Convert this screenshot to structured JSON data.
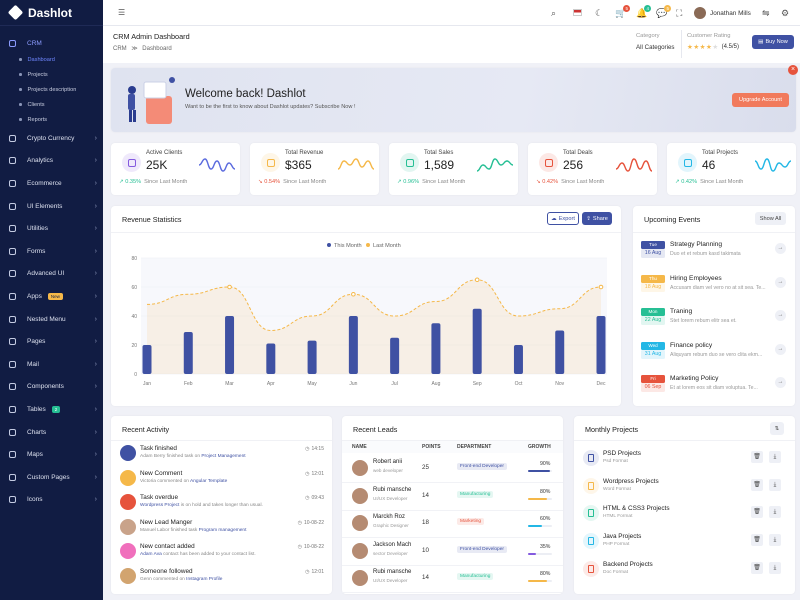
{
  "app": {
    "name": "Dashlot"
  },
  "sidebar": {
    "items": [
      {
        "label": "CRM",
        "active": true,
        "icon": "home-icon"
      },
      {
        "label": "Crypto Currency",
        "icon": "coin-icon"
      },
      {
        "label": "Analytics",
        "icon": "pulse-icon"
      },
      {
        "label": "Ecommerce",
        "icon": "cart-icon"
      },
      {
        "label": "UI Elements",
        "icon": "box-icon"
      },
      {
        "label": "Utilities",
        "icon": "sliders-icon"
      },
      {
        "label": "Forms",
        "icon": "form-icon"
      },
      {
        "label": "Advanced UI",
        "icon": "layers-icon"
      },
      {
        "label": "Apps",
        "badge": "New",
        "icon": "grid-icon"
      },
      {
        "label": "Nested Menu",
        "icon": "menu-icon"
      },
      {
        "label": "Pages",
        "icon": "file-icon"
      },
      {
        "label": "Mail",
        "icon": "mail-icon"
      },
      {
        "label": "Components",
        "icon": "component-icon"
      },
      {
        "label": "Tables",
        "badge": "2",
        "icon": "table-icon"
      },
      {
        "label": "Charts",
        "icon": "chart-icon"
      },
      {
        "label": "Maps",
        "icon": "map-icon"
      },
      {
        "label": "Custom Pages",
        "icon": "page-icon"
      },
      {
        "label": "Icons",
        "icon": "icons-icon"
      }
    ],
    "subitems": [
      "Dashboard",
      "Projects",
      "Projects description",
      "Clients",
      "Reports"
    ]
  },
  "topbar": {
    "user": "Jonathan Mills",
    "cart_count": "5",
    "bell_count": "4",
    "chat_count": "5"
  },
  "page": {
    "title": "CRM Admin Dashboard",
    "crumb1": "CRM",
    "crumb_sep": "≫",
    "crumb2": "Dashboard",
    "category_label": "Category",
    "category_value": "All Categories",
    "rating_label": "Customer Rating",
    "rating_value": "(4.5/5)",
    "buy_label": "Buy Now"
  },
  "welcome": {
    "title": "Welcome back! Dashlot",
    "subtitle": "Want to be the first to know about Dashlot updates? Subscribe Now !",
    "button": "Upgrade Account"
  },
  "stats": [
    {
      "label": "Active Clients",
      "value": "25K",
      "change": "0.35%",
      "note": "Since Last Month",
      "up": true,
      "color": "#845adf",
      "spark": "#5b6bde"
    },
    {
      "label": "Total Revenue",
      "value": "$365",
      "change": "0.54%",
      "note": "Since Last Month",
      "up": false,
      "color": "#f5b849",
      "spark": "#f5b849"
    },
    {
      "label": "Total Sales",
      "value": "1,589",
      "change": "0.96%",
      "note": "Since Last Month",
      "up": true,
      "color": "#26bf94",
      "spark": "#26bf94"
    },
    {
      "label": "Total Deals",
      "value": "256",
      "change": "0.42%",
      "note": "Since Last Month",
      "up": false,
      "color": "#e6533c",
      "spark": "#e6533c"
    },
    {
      "label": "Total Projects",
      "value": "46",
      "change": "0.42%",
      "note": "Since Last Month",
      "up": true,
      "color": "#23b7e5",
      "spark": "#23b7e5"
    }
  ],
  "revenue": {
    "title": "Revenue Statistics",
    "export": "Export",
    "share": "Share"
  },
  "chart_data": {
    "type": "bar",
    "categories": [
      "Jan",
      "Feb",
      "Mar",
      "Apr",
      "May",
      "Jun",
      "Jul",
      "Aug",
      "Sep",
      "Oct",
      "Nov",
      "Dec"
    ],
    "series": [
      {
        "name": "This Month",
        "type": "bar",
        "color": "#3f51a3",
        "values": [
          20,
          29,
          40,
          21,
          23,
          40,
          25,
          35,
          45,
          20,
          30,
          40
        ]
      },
      {
        "name": "Last Month",
        "type": "line",
        "color": "#f5b849",
        "values": [
          48,
          55,
          60,
          30,
          40,
          55,
          40,
          50,
          65,
          40,
          45,
          60
        ]
      }
    ],
    "ylim": [
      0,
      80
    ],
    "yticks": [
      0,
      20,
      40,
      60,
      80
    ]
  },
  "events": {
    "title": "Upcoming Events",
    "show_all": "Show All",
    "items": [
      {
        "tag": "Tue",
        "date": "16 Aug",
        "title": "Strategy Planning",
        "desc": "Duo et et rebum kasd takimata",
        "color": "#3f51a3"
      },
      {
        "tag": "Thu",
        "date": "18 Aug",
        "title": "Hiring Employees",
        "desc": "Accusam diam vel vero no at sit sea. Te...",
        "color": "#f5b849"
      },
      {
        "tag": "Mon",
        "date": "22 Aug",
        "title": "Traning",
        "desc": "Stet lorem rebum elitr sea et.",
        "color": "#26bf94"
      },
      {
        "tag": "Wed",
        "date": "31 Aug",
        "title": "Finance policy",
        "desc": "Aliquyam rebum duo se vero clita ekm...",
        "color": "#23b7e5"
      },
      {
        "tag": "Fri",
        "date": "06 Sep",
        "title": "Marketing Policy",
        "desc": "Et at lorem eos sit diam voluptua. Te...",
        "color": "#e6533c"
      }
    ]
  },
  "activity": {
    "title": "Recent Activity",
    "items": [
      {
        "title": "Task finished",
        "pre": "Adam Berry finished task on ",
        "link": "Project Management",
        "time": "14:15",
        "color": "#3f51a3"
      },
      {
        "title": "New Comment",
        "pre": "Victoria commented on ",
        "link": "Angular Template",
        "time": "12:01",
        "color": "#f5b849"
      },
      {
        "title": "Task overdue",
        "pre": "",
        "link": "Wordpress Project",
        "post": " is on hold and takes longer than usual.",
        "time": "09:43",
        "color": "#e6533c"
      },
      {
        "title": "New Lead Manger",
        "pre": "Manuel Labor finished task ",
        "link": "Program management",
        "time": "10-08-22",
        "color": "#c9a38a"
      },
      {
        "title": "New contact added",
        "pre": "",
        "link": "Adam Ava",
        "post": " contact has been added to your contact list.",
        "time": "10-08-22",
        "color": "#f06fbc"
      },
      {
        "title": "Someone followed",
        "pre": "Genn commented on ",
        "link": "Instagram Profile",
        "time": "12:01",
        "color": "#d2a46f"
      }
    ]
  },
  "leads": {
    "title": "Recent Leads",
    "headers": [
      "NAME",
      "POINTS",
      "DEPARTMENT",
      "GROWTH"
    ],
    "rows": [
      {
        "name": "Robert anii",
        "role": "web developer",
        "points": "25",
        "dept": "Front-end Developer",
        "growth": "90%",
        "pct": 0.9,
        "dcolor": "#3f51a3",
        "bar": "#3f51a3"
      },
      {
        "name": "Rubi mansche",
        "role": "UI/UX Developer",
        "points": "14",
        "dept": "Manufacturing",
        "growth": "80%",
        "pct": 0.8,
        "dcolor": "#26bf94",
        "bar": "#f5b849"
      },
      {
        "name": "Marckh Roz",
        "role": "Graphic Designer",
        "points": "18",
        "dept": "Marketing",
        "growth": "60%",
        "pct": 0.6,
        "dcolor": "#e6533c",
        "bar": "#23b7e5"
      },
      {
        "name": "Jackson Mach",
        "role": "sector Developer",
        "points": "10",
        "dept": "Front-end Developer",
        "growth": "35%",
        "pct": 0.35,
        "dcolor": "#3f51a3",
        "bar": "#845adf"
      },
      {
        "name": "Rubi mansche",
        "role": "UI/UX Developer",
        "points": "14",
        "dept": "Manufacturing",
        "growth": "80%",
        "pct": 0.8,
        "dcolor": "#26bf94",
        "bar": "#f5b849"
      }
    ]
  },
  "projects": {
    "title": "Monthly Projects",
    "items": [
      {
        "name": "PSD Projects",
        "format": "Psd Format",
        "color": "#3f51a3"
      },
      {
        "name": "Wordpress Projects",
        "format": "Word Format",
        "color": "#f5b849"
      },
      {
        "name": "HTML & CSS3 Projects",
        "format": "HTML Format",
        "color": "#26bf94"
      },
      {
        "name": "Java Projects",
        "format": "PHP Format",
        "color": "#23b7e5"
      },
      {
        "name": "Backend Projects",
        "format": "Doc Format",
        "color": "#e6533c"
      }
    ]
  }
}
